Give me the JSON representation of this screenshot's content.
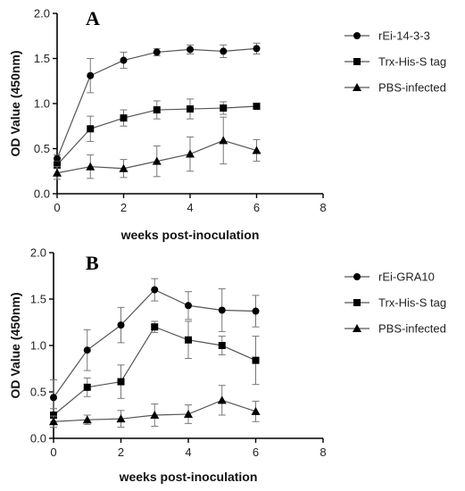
{
  "chart_data": [
    {
      "type": "line",
      "panel_label": "A",
      "xlabel": "weeks post-inoculation",
      "ylabel": "OD Value (450nm)",
      "xlim": [
        0,
        8
      ],
      "ylim": [
        0,
        2.0
      ],
      "xticks": [
        "0",
        "2",
        "4",
        "6",
        "8"
      ],
      "yticks": [
        "0.0",
        "0.5",
        "1.0",
        "1.5",
        "2.0"
      ],
      "grid": false,
      "legend_position": "right",
      "x": [
        0,
        1,
        2,
        3,
        4,
        5,
        6
      ],
      "series": [
        {
          "name": "rEi-14-3-3",
          "marker": "circle",
          "values": [
            0.39,
            1.31,
            1.48,
            1.57,
            1.6,
            1.58,
            1.61
          ],
          "errors": [
            0.04,
            0.19,
            0.09,
            0.04,
            0.05,
            0.07,
            0.06
          ]
        },
        {
          "name": "Trx-His-S tag",
          "marker": "square",
          "values": [
            0.32,
            0.72,
            0.84,
            0.93,
            0.94,
            0.95,
            0.97
          ],
          "errors": [
            0.04,
            0.14,
            0.09,
            0.1,
            0.11,
            0.07,
            0.03
          ]
        },
        {
          "name": "PBS-infected",
          "marker": "triangle",
          "values": [
            0.23,
            0.3,
            0.28,
            0.36,
            0.44,
            0.59,
            0.48
          ],
          "errors": [
            0.07,
            0.13,
            0.1,
            0.17,
            0.19,
            0.26,
            0.12
          ]
        }
      ]
    },
    {
      "type": "line",
      "panel_label": "B",
      "xlabel": "weeks post-inoculation",
      "ylabel": "OD Value (450nm)",
      "xlim": [
        0,
        8
      ],
      "ylim": [
        0,
        2.0
      ],
      "xticks": [
        "0",
        "2",
        "4",
        "6",
        "8"
      ],
      "yticks": [
        "0.0",
        "0.5",
        "1.0",
        "1.5",
        "2.0"
      ],
      "grid": false,
      "legend_position": "right",
      "x": [
        0,
        1,
        2,
        3,
        4,
        5,
        6
      ],
      "series": [
        {
          "name": "rEi-GRA10",
          "marker": "circle",
          "values": [
            0.44,
            0.95,
            1.22,
            1.6,
            1.43,
            1.38,
            1.37
          ],
          "errors": [
            0.19,
            0.22,
            0.19,
            0.12,
            0.15,
            0.23,
            0.17
          ]
        },
        {
          "name": "Trx-His-S tag",
          "marker": "square",
          "values": [
            0.25,
            0.55,
            0.61,
            1.2,
            1.06,
            1.0,
            0.84
          ],
          "errors": [
            0.07,
            0.1,
            0.18,
            0.06,
            0.2,
            0.1,
            0.26
          ]
        },
        {
          "name": "PBS-infected",
          "marker": "triangle",
          "values": [
            0.18,
            0.2,
            0.21,
            0.25,
            0.26,
            0.41,
            0.29
          ],
          "errors": [
            0.06,
            0.05,
            0.09,
            0.12,
            0.1,
            0.16,
            0.11
          ]
        }
      ]
    }
  ]
}
